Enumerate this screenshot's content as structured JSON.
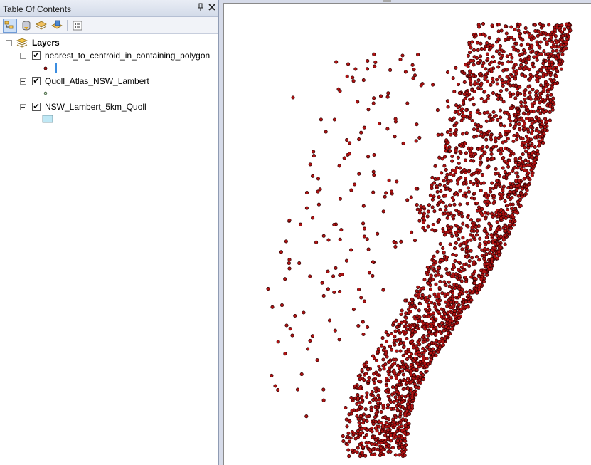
{
  "toc": {
    "title": "Table Of Contents",
    "pin_glyph": "ť",
    "close_glyph": "✕",
    "toolbar": [
      {
        "name": "list-by-drawing-order-icon",
        "active": true
      },
      {
        "name": "list-by-source-icon",
        "active": false
      },
      {
        "name": "list-by-visibility-icon",
        "active": false
      },
      {
        "name": "list-by-selection-icon",
        "active": false
      },
      {
        "name": "options-icon",
        "active": false
      }
    ],
    "root_label": "Layers",
    "layers": [
      {
        "label": "nearest_to_centroid_in_containing_polygon",
        "checked": true,
        "symbol": "point-with-bar"
      },
      {
        "label": "Quoll_Atlas_NSW_Lambert",
        "checked": true,
        "symbol": "point"
      },
      {
        "label": "NSW_Lambert_5km_Quoll",
        "checked": true,
        "symbol": "polygon"
      }
    ]
  },
  "colors": {
    "point_fill": "#b01212",
    "point_outline": "#2b0000",
    "polygon_fill": "#bfe8f5",
    "selection_bar": "#3b8de0"
  }
}
